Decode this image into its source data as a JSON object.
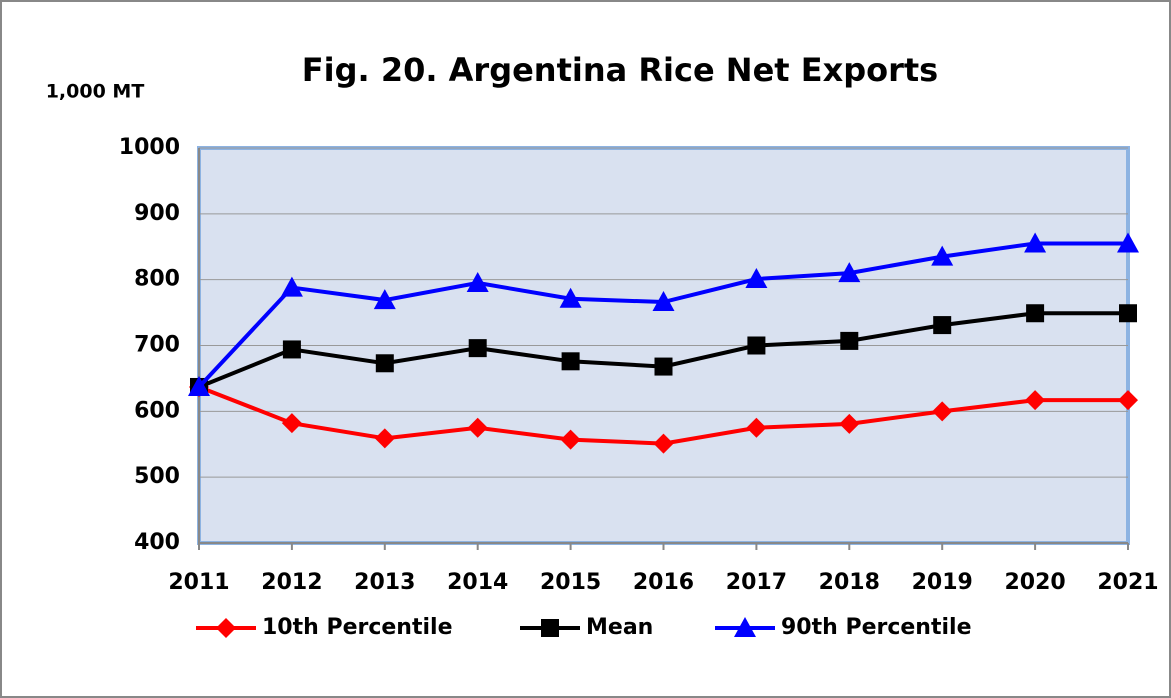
{
  "chart_data": {
    "type": "line",
    "title": "Fig. 20.  Argentina Rice Net Exports",
    "y_label": "1,000 MT",
    "x": [
      2011,
      2012,
      2013,
      2014,
      2015,
      2016,
      2017,
      2018,
      2019,
      2020,
      2021
    ],
    "xlim": [
      2011,
      2021
    ],
    "xticks": [
      2011,
      2012,
      2013,
      2014,
      2015,
      2016,
      2017,
      2018,
      2019,
      2020,
      2021
    ],
    "ylim": [
      400,
      1000
    ],
    "yticks": [
      400,
      500,
      600,
      700,
      800,
      900,
      1000
    ],
    "grid": true,
    "legend": "bottom",
    "series": [
      {
        "name": "10th Percentile",
        "color": "#ff0000",
        "marker": "diamond",
        "values": [
          637,
          582,
          559,
          575,
          557,
          551,
          575,
          581,
          600,
          617,
          617
        ]
      },
      {
        "name": "Mean",
        "color": "#000000",
        "marker": "square",
        "values": [
          637,
          694,
          673,
          696,
          676,
          668,
          700,
          707,
          731,
          749,
          749
        ]
      },
      {
        "name": "90th Percentile",
        "color": "#0000ff",
        "marker": "triangle",
        "values": [
          637,
          788,
          769,
          795,
          771,
          766,
          801,
          810,
          835,
          855,
          855
        ]
      }
    ]
  }
}
